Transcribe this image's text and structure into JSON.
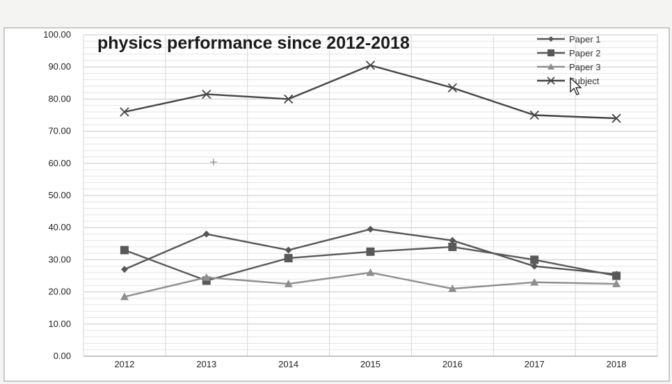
{
  "chart_data": {
    "type": "line",
    "title": "physics performance since 2012-2018",
    "categories": [
      "2012",
      "2013",
      "2014",
      "2015",
      "2016",
      "2017",
      "2018"
    ],
    "y_tick_labels": [
      "0.00",
      "10.00",
      "20.00",
      "30.00",
      "40.00",
      "50.00",
      "60.00",
      "70.00",
      "80.00",
      "90.00",
      "100.00"
    ],
    "ylim": [
      0,
      100
    ],
    "grid": true,
    "legend_position": "top-right",
    "series": [
      {
        "name": "Paper 1",
        "marker": "diamond",
        "color": "#555555",
        "values": [
          27,
          38,
          33,
          39.5,
          36,
          28,
          25.5
        ]
      },
      {
        "name": "Paper 2",
        "marker": "square",
        "color": "#595959",
        "values": [
          33,
          23.5,
          30.5,
          32.5,
          34,
          30,
          25
        ]
      },
      {
        "name": "Paper 3",
        "marker": "triangle",
        "color": "#8e8e8e",
        "values": [
          18.5,
          24.5,
          22.5,
          26,
          21,
          23,
          22.5
        ]
      },
      {
        "name": "Subject",
        "marker": "x",
        "color": "#444444",
        "values": [
          76,
          81.5,
          80,
          90.5,
          83.5,
          75,
          74
        ]
      }
    ]
  }
}
